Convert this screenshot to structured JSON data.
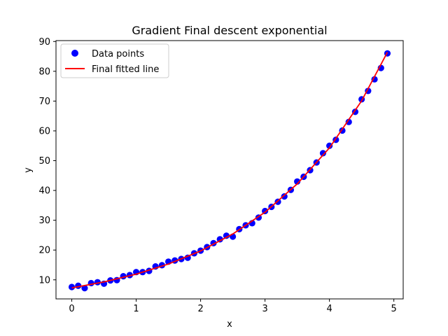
{
  "chart_data": {
    "type": "scatter",
    "title": "Gradient Final descent exponential",
    "xlabel": "x",
    "ylabel": "y",
    "xlim": [
      -0.245,
      5.145
    ],
    "ylim": [
      3.6,
      90.3
    ],
    "xticks": [
      0,
      1,
      2,
      3,
      4,
      5
    ],
    "yticks": [
      10,
      20,
      30,
      40,
      50,
      60,
      70,
      80,
      90
    ],
    "grid": false,
    "legend_position": "top-left",
    "series": [
      {
        "name": "Data points",
        "kind": "scatter",
        "color": "#0000ff",
        "x": [
          0.0,
          0.1,
          0.2,
          0.3,
          0.4,
          0.5,
          0.6,
          0.7,
          0.8,
          0.9,
          1.0,
          1.1,
          1.2,
          1.3,
          1.4,
          1.5,
          1.6,
          1.7,
          1.8,
          1.9,
          2.0,
          2.1,
          2.2,
          2.3,
          2.4,
          2.5,
          2.6,
          2.7,
          2.8,
          2.9,
          3.0,
          3.1,
          3.2,
          3.3,
          3.4,
          3.5,
          3.6,
          3.7,
          3.8,
          3.9,
          4.0,
          4.1,
          4.2,
          4.3,
          4.4,
          4.5,
          4.6,
          4.7,
          4.8,
          4.9
        ],
        "y": [
          7.6,
          8.0,
          7.2,
          8.9,
          9.2,
          8.7,
          9.8,
          9.9,
          11.2,
          11.6,
          12.6,
          12.6,
          13.0,
          14.5,
          14.9,
          16.1,
          16.5,
          17.0,
          17.4,
          18.9,
          19.8,
          21.0,
          22.3,
          23.6,
          24.8,
          24.5,
          27.0,
          28.3,
          29.0,
          30.9,
          33.1,
          34.5,
          36.2,
          38.0,
          40.2,
          43.0,
          44.6,
          46.8,
          49.4,
          52.5,
          55.0,
          57.0,
          60.1,
          63.0,
          66.4,
          70.6,
          73.4,
          77.3,
          81.1,
          86.0
        ]
      },
      {
        "name": "Final fitted line",
        "kind": "line",
        "color": "#ff0000",
        "x": [
          0.0,
          0.5,
          1.0,
          1.5,
          2.0,
          2.5,
          3.0,
          3.5,
          4.0,
          4.5,
          4.9
        ],
        "y": [
          7.3,
          9.3,
          11.9,
          15.3,
          19.7,
          25.4,
          32.7,
          42.2,
          54.3,
          70.1,
          86.4
        ]
      }
    ]
  }
}
